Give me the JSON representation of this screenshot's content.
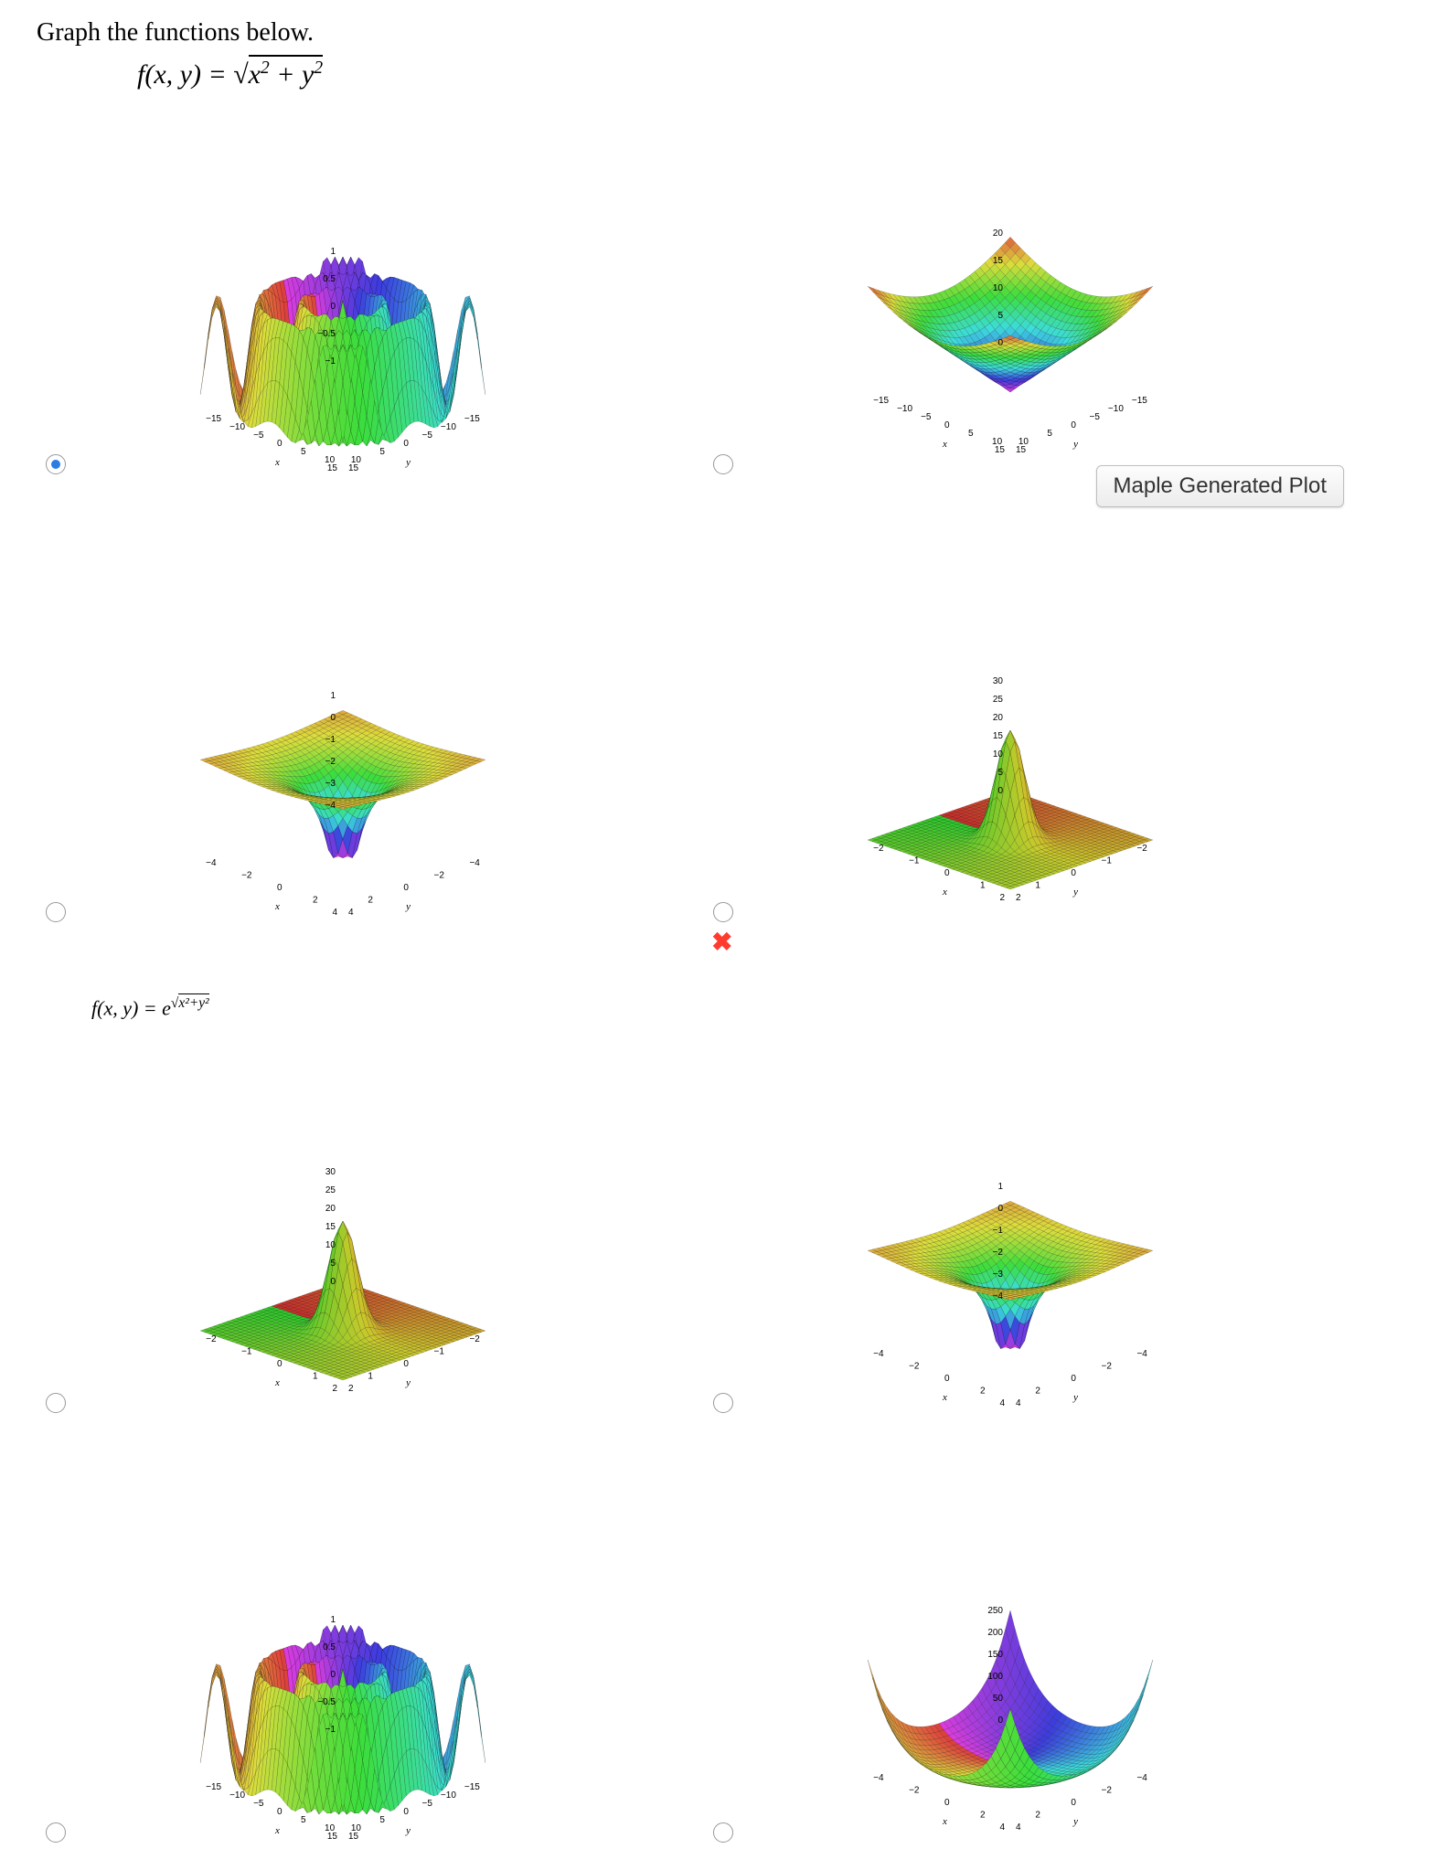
{
  "prompt": "Graph the functions below.",
  "equation1_prefix": "f(x, y) = ",
  "equation1_radicand": "x² + y²",
  "equation2": "f(x, y) = e^√(x²+y²)",
  "tooltip": "Maple Generated Plot",
  "x_cross": "✖",
  "axis_x": "x",
  "axis_y": "y",
  "plots": {
    "r1c1": {
      "type": "oscillating-crown",
      "z_ticks": [
        "1",
        "0.5",
        "0",
        "−0.5",
        "−1"
      ],
      "xy_ticks": [
        "−15",
        "−10",
        "−5",
        "0",
        "5",
        "10",
        "15"
      ],
      "domain": [
        -15,
        15
      ],
      "zrange": [
        -1,
        1
      ],
      "selected": true
    },
    "r1c2": {
      "type": "cone-up",
      "z_ticks": [
        "20",
        "15",
        "10",
        "5",
        "0"
      ],
      "xy_ticks": [
        "−15",
        "−10",
        "−5",
        "0",
        "5",
        "10",
        "15"
      ],
      "domain": [
        -15,
        15
      ],
      "zrange": [
        0,
        22
      ],
      "selected": false
    },
    "r2c1": {
      "type": "funnel-down",
      "z_ticks": [
        "1",
        "0",
        "−1",
        "−2",
        "−3",
        "−4"
      ],
      "xy_ticks": [
        "−4",
        "−2",
        "0",
        "2",
        "4"
      ],
      "domain": [
        -4,
        4
      ],
      "zrange": [
        -4,
        1
      ],
      "selected": false
    },
    "r2c2": {
      "type": "spike-up",
      "z_ticks": [
        "30",
        "25",
        "20",
        "15",
        "10",
        "5",
        "0"
      ],
      "xy_ticks": [
        "−2",
        "−1",
        "0",
        "1",
        "2"
      ],
      "domain": [
        -2,
        2
      ],
      "zrange": [
        0,
        30
      ],
      "selected": false,
      "wrong": true
    },
    "r3c1": {
      "type": "spike-up",
      "z_ticks": [
        "30",
        "25",
        "20",
        "15",
        "10",
        "5",
        "0"
      ],
      "xy_ticks": [
        "−2",
        "−1",
        "0",
        "1",
        "2"
      ],
      "domain": [
        -2,
        2
      ],
      "zrange": [
        0,
        30
      ],
      "selected": false
    },
    "r3c2": {
      "type": "funnel-down",
      "z_ticks": [
        "1",
        "0",
        "−1",
        "−2",
        "−3",
        "−4"
      ],
      "xy_ticks": [
        "−4",
        "−2",
        "0",
        "2",
        "4"
      ],
      "domain": [
        -4,
        4
      ],
      "zrange": [
        -4,
        1
      ],
      "selected": false
    },
    "r4c1": {
      "type": "oscillating-crown",
      "z_ticks": [
        "1",
        "0.5",
        "0",
        "−0.5",
        "−1"
      ],
      "xy_ticks": [
        "−15",
        "−10",
        "−5",
        "0",
        "5",
        "10",
        "15"
      ],
      "domain": [
        -15,
        15
      ],
      "zrange": [
        -1,
        1
      ],
      "selected": false
    },
    "r4c2": {
      "type": "exp-bowl",
      "z_ticks": [
        "250",
        "200",
        "150",
        "100",
        "50",
        "0"
      ],
      "xy_ticks": [
        "−4",
        "−2",
        "0",
        "2",
        "4"
      ],
      "domain": [
        -4,
        4
      ],
      "zrange": [
        0,
        280
      ],
      "selected": false
    }
  },
  "colors": {
    "rainbow": [
      "#d63384",
      "#8b5cf6",
      "#3b82f6",
      "#06b6d4",
      "#10b981",
      "#84cc16",
      "#eab308",
      "#f97316",
      "#ef4444"
    ],
    "flat_rainbow": [
      "#c82830",
      "#f0a030",
      "#e8d040",
      "#90c848",
      "#48b868",
      "#309090"
    ]
  }
}
